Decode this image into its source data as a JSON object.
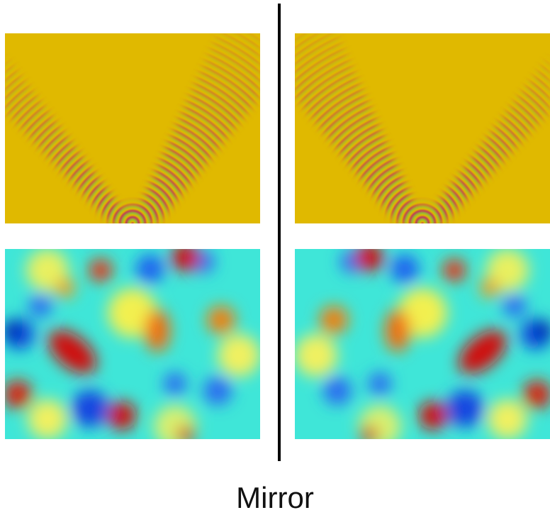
{
  "caption": "Mirror"
}
